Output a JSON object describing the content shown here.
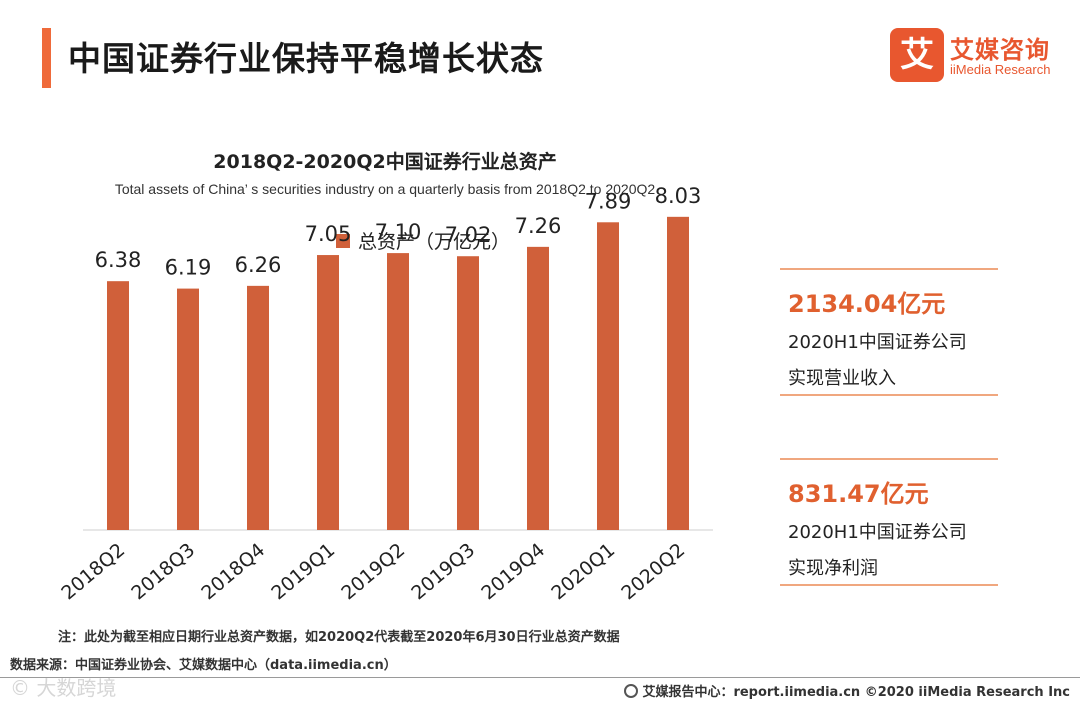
{
  "header": {
    "title": "中国证券行业保持平稳增长状态"
  },
  "logo": {
    "mark": "艾",
    "name_cn": "艾媒咨询",
    "name_en": "iiMedia Research"
  },
  "chart_data": {
    "type": "bar",
    "title": "2018Q2-2020Q2中国证券行业总资产",
    "subtitle": "Total assets of  China’  s securities industry on a quarterly basis  from 2018Q2 to 2020Q2",
    "categories": [
      "2018Q2",
      "2018Q3",
      "2018Q4",
      "2019Q1",
      "2019Q2",
      "2019Q3",
      "2019Q4",
      "2020Q1",
      "2020Q2"
    ],
    "series": [
      {
        "name": "总资产（万亿元）",
        "values": [
          6.38,
          6.19,
          6.26,
          7.05,
          7.1,
          7.02,
          7.26,
          7.89,
          8.03
        ],
        "labels": [
          "6.38",
          "6.19",
          "6.26",
          "7.05",
          "7.10",
          "7.02",
          "7.26",
          "7.89",
          "8.03"
        ]
      }
    ],
    "ylim": [
      0,
      10
    ],
    "grid": false,
    "legend": "top",
    "xlabel": "",
    "ylabel": "",
    "bar_color": "#d0603a"
  },
  "stats": [
    {
      "value": "2134.04亿元",
      "line1": "2020H1中国证券公司",
      "line2": "实现营业收入"
    },
    {
      "value": "831.47亿元",
      "line1": "2020H1中国证券公司",
      "line2": "实现净利润"
    }
  ],
  "footer": {
    "note": "注：此处为截至相应日期行业总资产数据，如2020Q2代表截至2020年6月30日行业总资产数据",
    "source": "数据来源：中国证券业协会、艾媒数据中心（data.iimedia.cn）",
    "watermark": "©  大数跨境",
    "report_center": "艾媒报告中心：report.iimedia.cn  ©2020  iiMedia Research  Inc"
  },
  "colors": {
    "accent": "#ef6a3a",
    "brand": "#e8572f",
    "value_text": "#e0602f",
    "rule": "#f0a77f"
  }
}
